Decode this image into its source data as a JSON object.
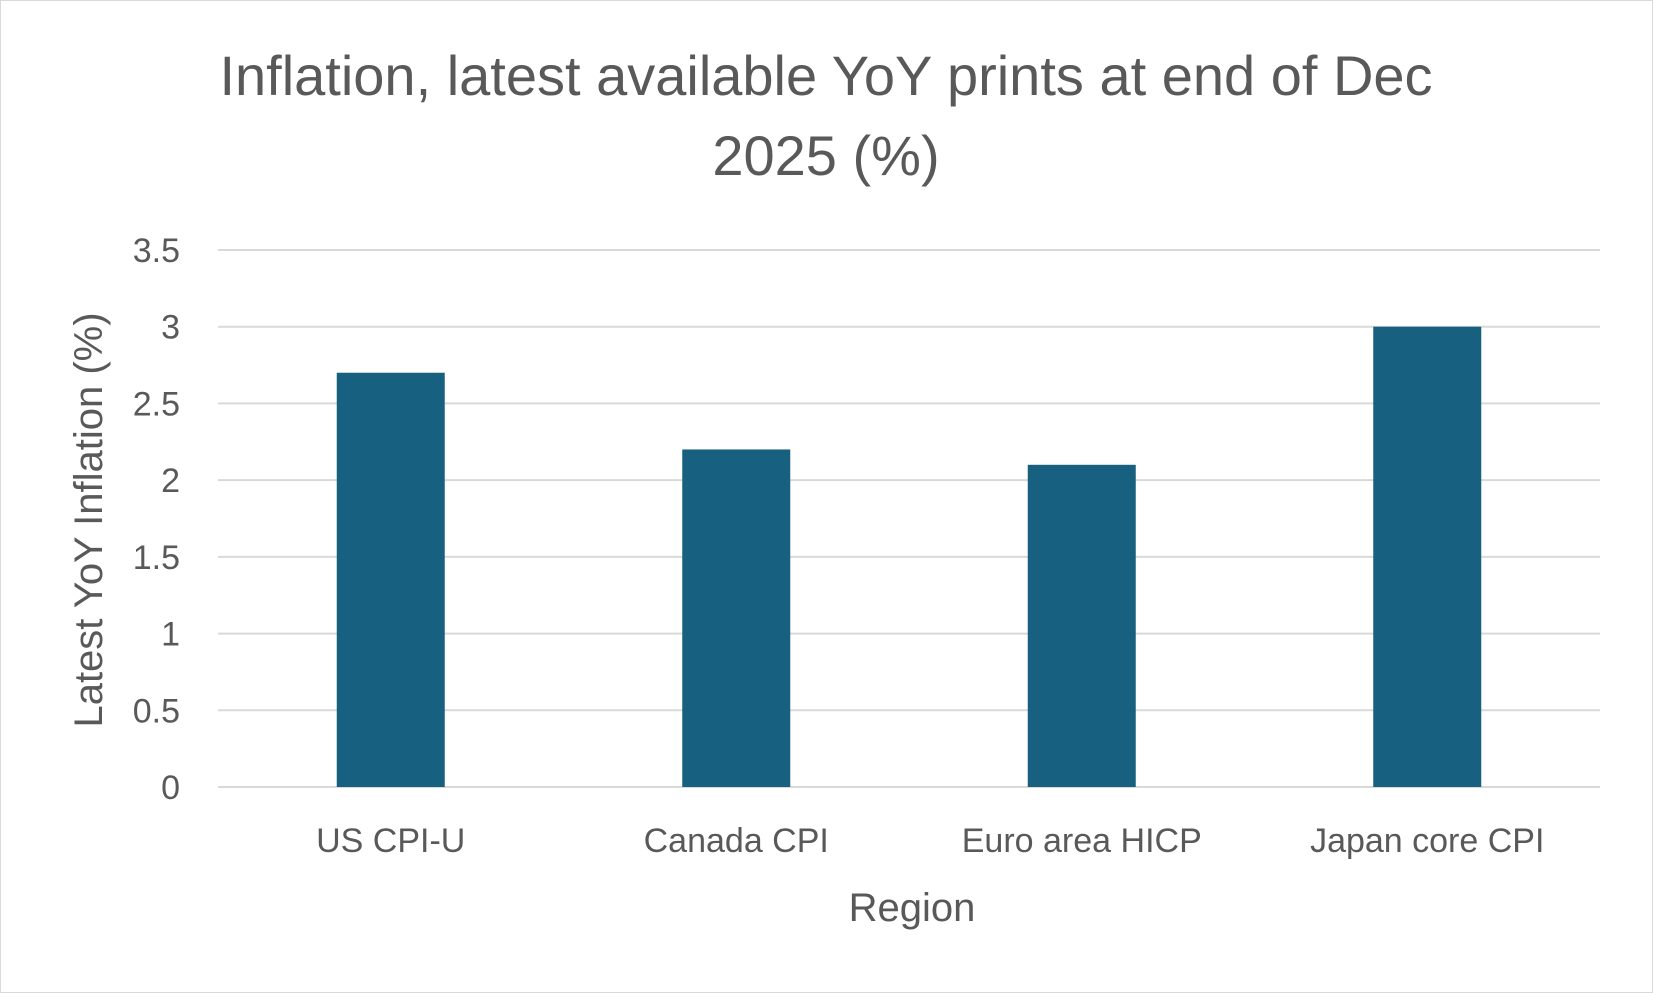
{
  "chart_data": {
    "type": "bar",
    "title_lines": [
      "Inflation, latest available YoY prints at end of Dec",
      "2025 (%)"
    ],
    "xlabel": "Region",
    "ylabel": "Latest YoY Inflation (%)",
    "categories": [
      "US CPI-U",
      "Canada CPI",
      "Euro area HICP",
      "Japan core CPI"
    ],
    "values": [
      2.7,
      2.2,
      2.1,
      3.0
    ],
    "ylim": [
      0,
      3.5
    ],
    "yticks": [
      0,
      0.5,
      1,
      1.5,
      2,
      2.5,
      3,
      3.5
    ],
    "ytick_labels": [
      "0",
      "0.5",
      "1",
      "1.5",
      "2",
      "2.5",
      "3",
      "3.5"
    ],
    "grid": true,
    "legend": "none",
    "colors": {
      "bar": "#17607f",
      "grid": "#d9d9d9",
      "text": "#595959",
      "border": "#d9d9d9"
    }
  }
}
